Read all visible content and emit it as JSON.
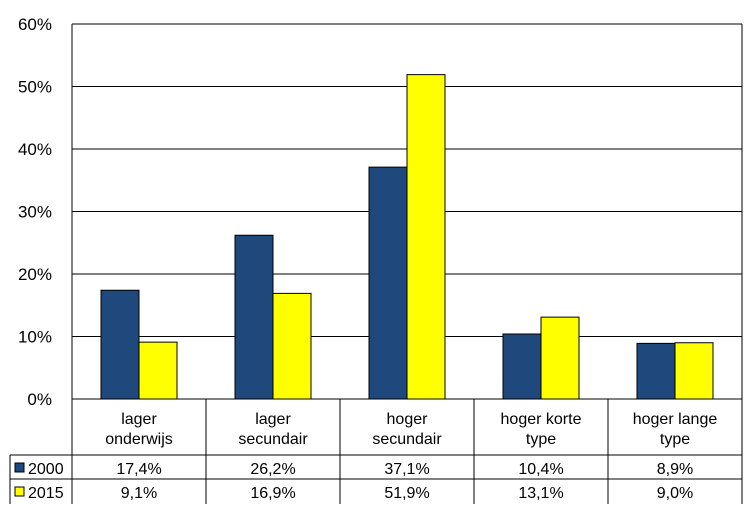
{
  "chart_data": {
    "type": "bar",
    "categories": [
      "lager onderwijs",
      "lager secundair",
      "hoger secundair",
      "hoger korte type",
      "hoger lange type"
    ],
    "series": [
      {
        "name": "2000",
        "values": [
          17.4,
          26.2,
          37.1,
          10.4,
          8.9
        ],
        "labels": [
          "17,4%",
          "26,2%",
          "37,1%",
          "10,4%",
          "8,9%"
        ],
        "color": "#1f497d"
      },
      {
        "name": "2015",
        "values": [
          9.1,
          16.9,
          51.9,
          13.1,
          9.0
        ],
        "labels": [
          "9,1%",
          "16,9%",
          "51,9%",
          "13,1%",
          "9,0%"
        ],
        "color": "#ffff00"
      }
    ],
    "yticks": [
      "0%",
      "10%",
      "20%",
      "30%",
      "40%",
      "50%",
      "60%"
    ],
    "ylim": [
      0,
      60
    ],
    "grid": true,
    "legend": "data-table"
  }
}
